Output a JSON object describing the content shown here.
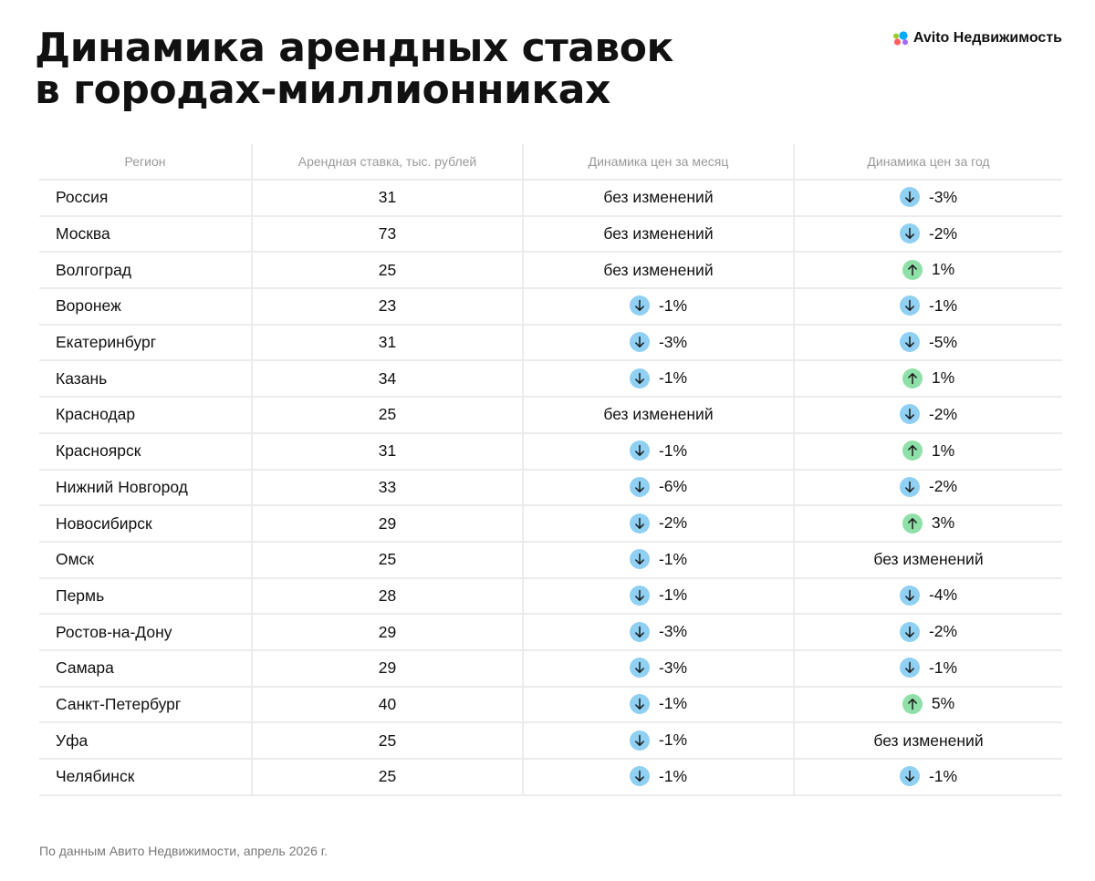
{
  "title_lines": [
    "Динамика арендных ставок",
    "в городах-миллионниках"
  ],
  "logo": {
    "text": "Avito Недвижимость",
    "icon": "avito-dots-icon",
    "colors": [
      "#00aaff",
      "#97cf26",
      "#a169f7",
      "#ff6163"
    ]
  },
  "colors": {
    "down_badge": "#8fd0f3",
    "up_badge": "#8fe0a8",
    "grid": "#ececec",
    "header_text": "#9a9a9a"
  },
  "footer": "По данным Авито Недвижимости, апрель 2026 г.",
  "chart_data": {
    "type": "table",
    "columns": [
      "Регион",
      "Арендная ставка, тыс. рублей",
      "Динамика цен за месяц",
      "Динамика цен за год"
    ],
    "no_change_label": "без изменений",
    "rows": [
      {
        "region": "Россия",
        "rate": "31",
        "month": {
          "text": "без изменений",
          "dir": "none"
        },
        "year": {
          "text": "-3%",
          "dir": "down"
        }
      },
      {
        "region": "Москва",
        "rate": "73",
        "month": {
          "text": "без изменений",
          "dir": "none"
        },
        "year": {
          "text": "-2%",
          "dir": "down"
        }
      },
      {
        "region": "Волгоград",
        "rate": "25",
        "month": {
          "text": "без изменений",
          "dir": "none"
        },
        "year": {
          "text": "1%",
          "dir": "up"
        }
      },
      {
        "region": "Воронеж",
        "rate": "23",
        "month": {
          "text": "-1%",
          "dir": "down"
        },
        "year": {
          "text": "-1%",
          "dir": "down"
        }
      },
      {
        "region": "Екатеринбург",
        "rate": "31",
        "month": {
          "text": "-3%",
          "dir": "down"
        },
        "year": {
          "text": "-5%",
          "dir": "down"
        }
      },
      {
        "region": "Казань",
        "rate": "34",
        "month": {
          "text": "-1%",
          "dir": "down"
        },
        "year": {
          "text": "1%",
          "dir": "up"
        }
      },
      {
        "region": "Краснодар",
        "rate": "25",
        "month": {
          "text": "без изменений",
          "dir": "none"
        },
        "year": {
          "text": "-2%",
          "dir": "down"
        }
      },
      {
        "region": "Красноярск",
        "rate": "31",
        "month": {
          "text": "-1%",
          "dir": "down"
        },
        "year": {
          "text": "1%",
          "dir": "up"
        }
      },
      {
        "region": "Нижний Новгород",
        "rate": "33",
        "month": {
          "text": "-6%",
          "dir": "down"
        },
        "year": {
          "text": "-2%",
          "dir": "down"
        }
      },
      {
        "region": "Новосибирск",
        "rate": "29",
        "month": {
          "text": "-2%",
          "dir": "down"
        },
        "year": {
          "text": "3%",
          "dir": "up"
        }
      },
      {
        "region": "Омск",
        "rate": "25",
        "month": {
          "text": "-1%",
          "dir": "down"
        },
        "year": {
          "text": "без изменений",
          "dir": "none"
        }
      },
      {
        "region": "Пермь",
        "rate": "28",
        "month": {
          "text": "-1%",
          "dir": "down"
        },
        "year": {
          "text": "-4%",
          "dir": "down"
        }
      },
      {
        "region": "Ростов-на-Дону",
        "rate": "29",
        "month": {
          "text": "-3%",
          "dir": "down"
        },
        "year": {
          "text": "-2%",
          "dir": "down"
        }
      },
      {
        "region": "Самара",
        "rate": "29",
        "month": {
          "text": "-3%",
          "dir": "down"
        },
        "year": {
          "text": "-1%",
          "dir": "down"
        }
      },
      {
        "region": "Санкт-Петербург",
        "rate": "40",
        "month": {
          "text": "-1%",
          "dir": "down"
        },
        "year": {
          "text": "5%",
          "dir": "up"
        }
      },
      {
        "region": "Уфа",
        "rate": "25",
        "month": {
          "text": "-1%",
          "dir": "down"
        },
        "year": {
          "text": "без изменений",
          "dir": "none"
        }
      },
      {
        "region": "Челябинск",
        "rate": "25",
        "month": {
          "text": "-1%",
          "dir": "down"
        },
        "year": {
          "text": "-1%",
          "dir": "down"
        }
      }
    ]
  }
}
